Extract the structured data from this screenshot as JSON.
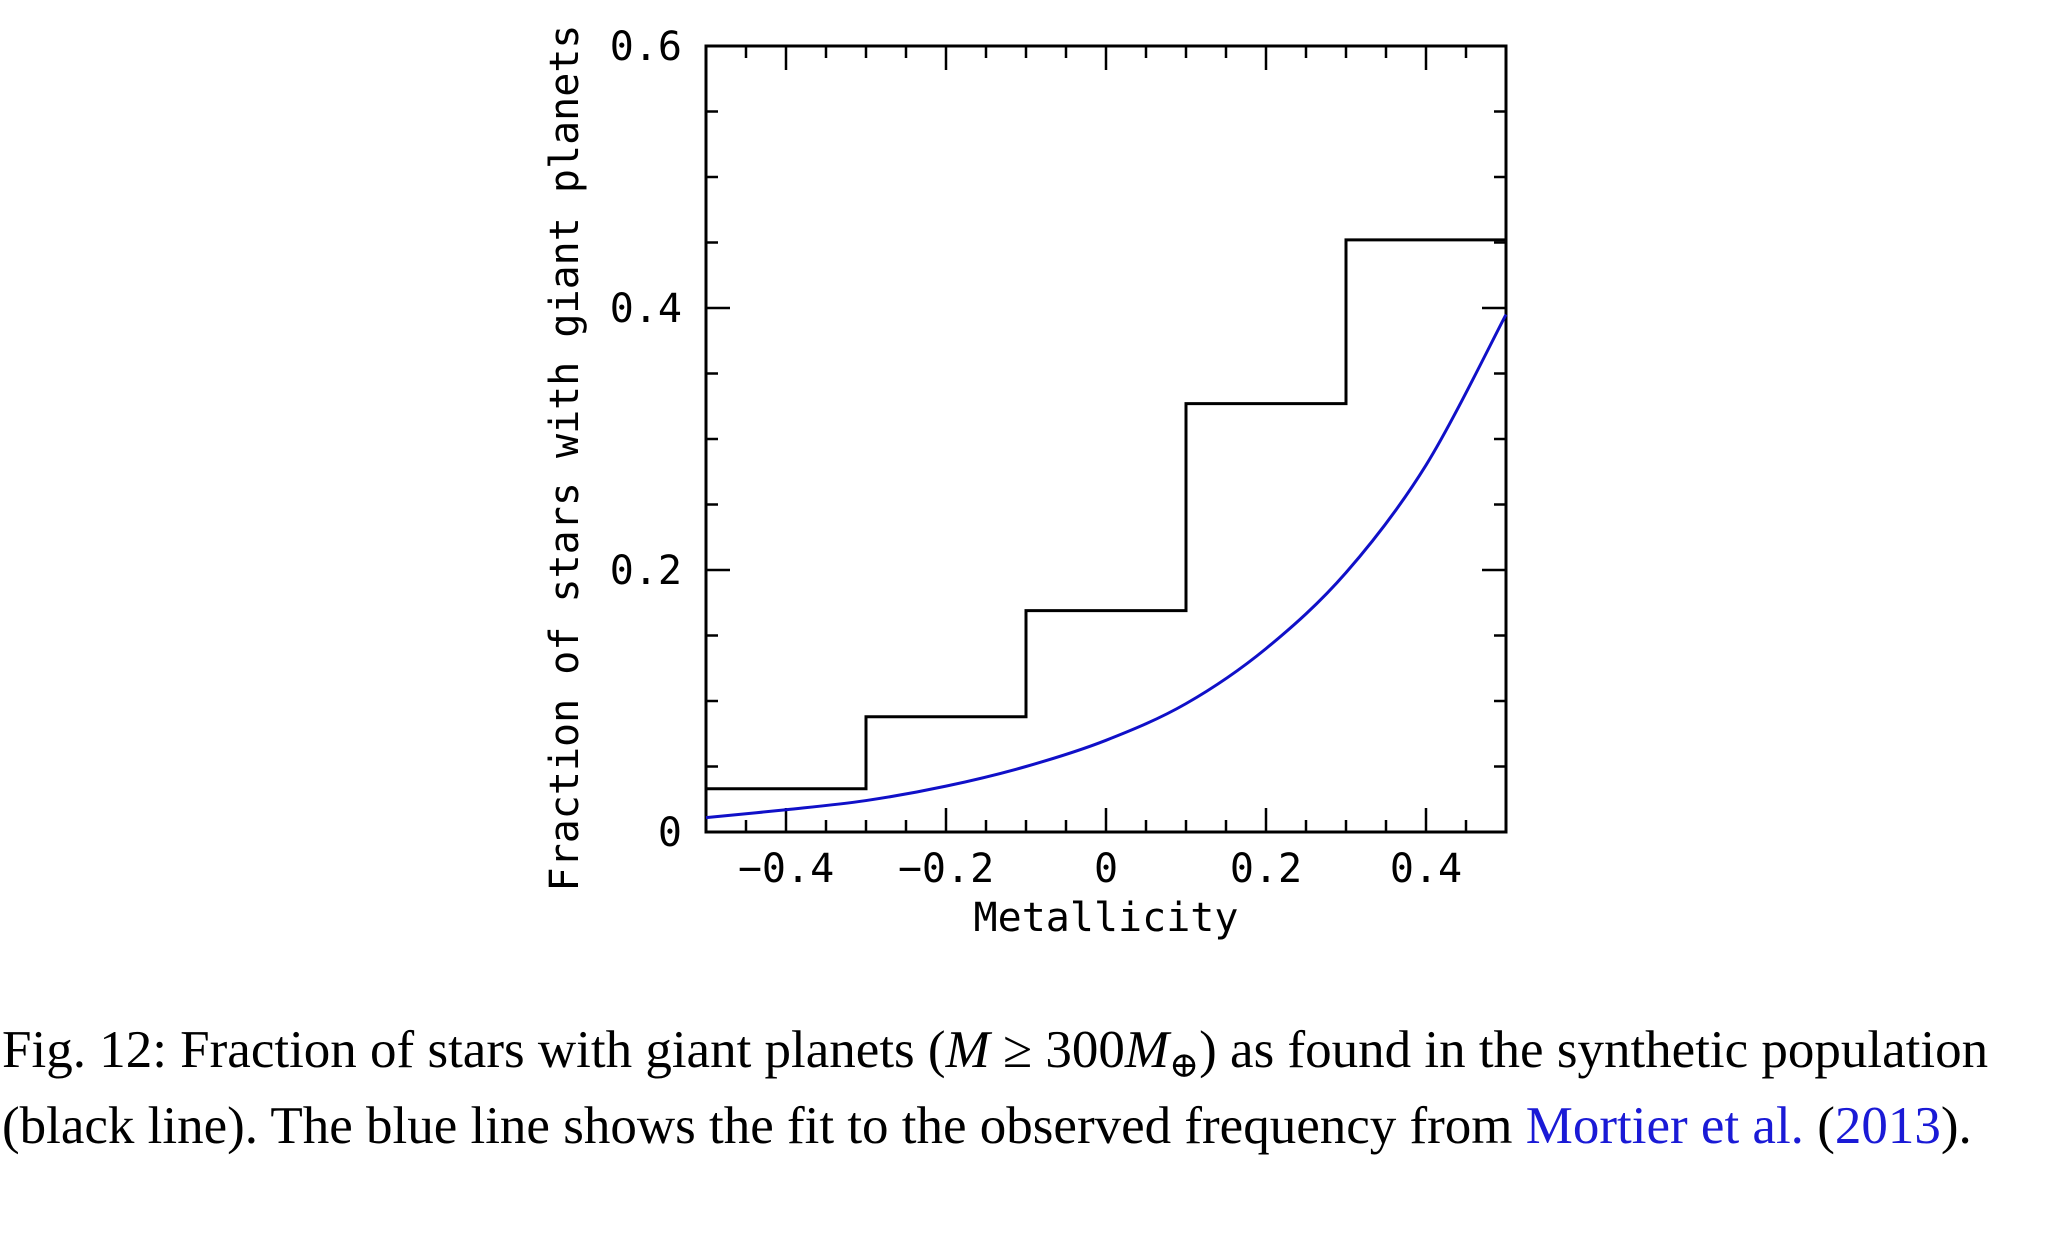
{
  "chart_data": {
    "type": "line",
    "xlabel": "Metallicity",
    "ylabel": "Fraction of stars with giant planets",
    "xlim": [
      -0.5,
      0.5
    ],
    "ylim": [
      0,
      0.6
    ],
    "x_ticks": [
      -0.4,
      -0.2,
      0,
      0.2,
      0.4
    ],
    "x_tick_labels": [
      "−0.4",
      "−0.2",
      "0",
      "0.2",
      "0.4"
    ],
    "y_ticks": [
      0,
      0.2,
      0.4,
      0.6
    ],
    "y_tick_labels": [
      "0",
      "0.2",
      "0.4",
      "0.6"
    ],
    "grid": false,
    "series": [
      {
        "style": "step",
        "color": "#000000",
        "bin_edges": [
          -0.5,
          -0.3,
          -0.1,
          0.1,
          0.3,
          0.5
        ],
        "values": [
          0.033,
          0.088,
          0.169,
          0.327,
          0.452
        ]
      },
      {
        "style": "curve",
        "color": "#1010c8",
        "x": [
          -0.5,
          -0.4,
          -0.3,
          -0.2,
          -0.1,
          0.0,
          0.1,
          0.2,
          0.3,
          0.4,
          0.5
        ],
        "y": [
          0.011,
          0.017,
          0.024,
          0.035,
          0.05,
          0.07,
          0.098,
          0.14,
          0.198,
          0.28,
          0.395
        ]
      }
    ]
  },
  "caption": {
    "prefix": "Fig. 12: Fraction of stars with giant planets (",
    "math_m": "M",
    "math_ge": " ≥ 300",
    "math_m2": "M",
    "math_sub": "⊕",
    "mid": ") as found in the synthetic population (black line). The blue line shows the fit to the observed frequency from ",
    "ref_name": "Mortier et al.",
    "ref_open": " (",
    "ref_year": "2013",
    "ref_close": ")."
  }
}
